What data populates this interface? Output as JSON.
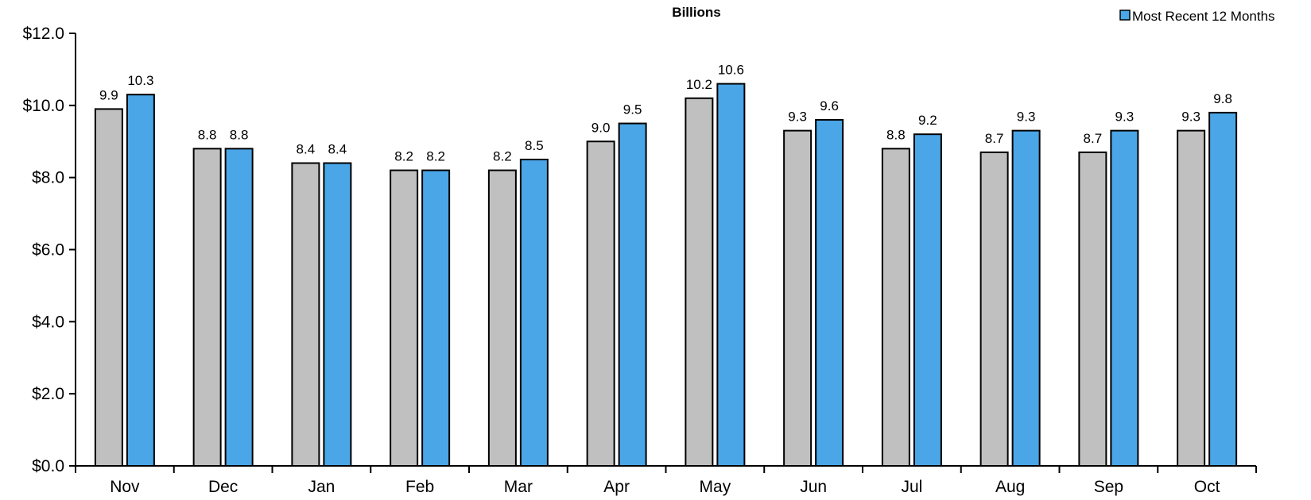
{
  "chart_data": {
    "type": "bar",
    "title": "Billions",
    "categories": [
      "Nov",
      "Dec",
      "Jan",
      "Feb",
      "Mar",
      "Apr",
      "May",
      "Jun",
      "Jul",
      "Aug",
      "Sep",
      "Oct"
    ],
    "series": [
      {
        "values": [
          9.9,
          8.8,
          8.4,
          8.2,
          8.2,
          9.0,
          10.2,
          9.3,
          8.8,
          8.7,
          8.7,
          9.3
        ],
        "labels": [
          "9.9",
          "8.8",
          "8.4",
          "8.2",
          "8.2",
          "9.0",
          "10.2",
          "9.3",
          "8.8",
          "8.7",
          "8.7",
          "9.3"
        ],
        "color": "#c0c0c0"
      },
      {
        "name": "Most Recent 12 Months",
        "values": [
          10.3,
          8.8,
          8.4,
          8.2,
          8.5,
          9.5,
          10.6,
          9.6,
          9.2,
          9.3,
          9.3,
          9.8
        ],
        "labels": [
          "10.3",
          "8.8",
          "8.4",
          "8.2",
          "8.5",
          "9.5",
          "10.6",
          "9.6",
          "9.2",
          "9.3",
          "9.3",
          "9.8"
        ],
        "color": "#4aa6e6"
      }
    ],
    "ylim": [
      0,
      12
    ],
    "yticks": [
      0,
      2,
      4,
      6,
      8,
      10,
      12
    ],
    "ytick_labels": [
      "$0.0",
      "$2.0",
      "$4.0",
      "$6.0",
      "$8.0",
      "$10.0",
      "$12.0"
    ],
    "grid": false,
    "legend": "top-right"
  }
}
